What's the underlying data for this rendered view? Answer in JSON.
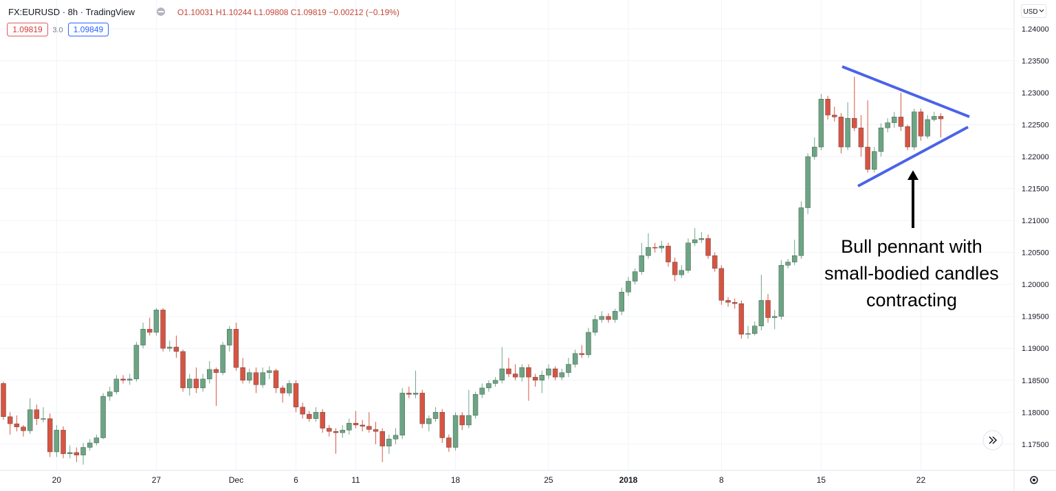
{
  "chart_data": {
    "type": "candlestick",
    "header": {
      "symbol": "FX:EURUSD · 8h · TradingView",
      "ohlc": "O1.10031 H1.10244 L1.09808 C1.09819 −0.00212 (−0.19%)",
      "bid": "1.09819",
      "spread": "3.0",
      "ask": "1.09849",
      "currency": "USD"
    },
    "annotation": [
      "Bull pennant with",
      "small-bodied candles",
      "contracting"
    ],
    "up_color": "#6ba583",
    "down_color": "#d75442",
    "grid": true,
    "ylim": [
      1.1709,
      1.2445
    ],
    "yticks": [
      {
        "value": 1.175,
        "label": "1.17500"
      },
      {
        "value": 1.18,
        "label": "1.18000"
      },
      {
        "value": 1.185,
        "label": "1.18500"
      },
      {
        "value": 1.19,
        "label": "1.19000"
      },
      {
        "value": 1.195,
        "label": "1.19500"
      },
      {
        "value": 1.2,
        "label": "1.20000"
      },
      {
        "value": 1.205,
        "label": "1.20500"
      },
      {
        "value": 1.21,
        "label": "1.21000"
      },
      {
        "value": 1.215,
        "label": "1.21500"
      },
      {
        "value": 1.22,
        "label": "1.22000"
      },
      {
        "value": 1.225,
        "label": "1.22500"
      },
      {
        "value": 1.23,
        "label": "1.23000"
      },
      {
        "value": 1.235,
        "label": "1.23500"
      },
      {
        "value": 1.24,
        "label": "1.24000"
      }
    ],
    "categories": [
      null,
      null,
      null,
      null,
      null,
      null,
      null,
      null,
      "20",
      null,
      null,
      null,
      null,
      null,
      null,
      null,
      null,
      null,
      null,
      null,
      null,
      null,
      null,
      "27",
      null,
      null,
      null,
      null,
      null,
      null,
      null,
      null,
      null,
      null,
      null,
      "Dec",
      null,
      null,
      null,
      null,
      null,
      null,
      null,
      null,
      "6",
      null,
      null,
      null,
      null,
      null,
      null,
      null,
      null,
      "11",
      null,
      null,
      null,
      null,
      null,
      null,
      null,
      null,
      null,
      null,
      null,
      null,
      null,
      null,
      "18",
      null,
      null,
      null,
      null,
      null,
      null,
      null,
      null,
      null,
      null,
      null,
      null,
      null,
      "25",
      null,
      null,
      null,
      null,
      null,
      null,
      null,
      null,
      null,
      null,
      null,
      "2018",
      null,
      null,
      null,
      null,
      null,
      null,
      null,
      null,
      null,
      null,
      null,
      null,
      null,
      "8",
      null,
      null,
      null,
      null,
      null,
      null,
      null,
      null,
      null,
      null,
      null,
      null,
      null,
      null,
      "15",
      null,
      null,
      null,
      null,
      null,
      null,
      null,
      null,
      null,
      null,
      null,
      null,
      null,
      null,
      "22",
      null,
      null,
      null
    ],
    "candles": [
      [
        1.1845,
        1.1848,
        1.1788,
        1.1793
      ],
      [
        1.1793,
        1.18,
        1.1765,
        1.1782
      ],
      [
        1.1782,
        1.1795,
        1.177,
        1.1777
      ],
      [
        1.1777,
        1.178,
        1.1762,
        1.1771
      ],
      [
        1.1771,
        1.1822,
        1.1766,
        1.1804
      ],
      [
        1.1804,
        1.1812,
        1.178,
        1.179
      ],
      [
        1.179,
        1.1808,
        1.1784,
        1.179
      ],
      [
        1.179,
        1.1798,
        1.173,
        1.1738
      ],
      [
        1.1738,
        1.178,
        1.173,
        1.1772
      ],
      [
        1.1772,
        1.1778,
        1.1728,
        1.1735
      ],
      [
        1.1735,
        1.1748,
        1.1728,
        1.1737
      ],
      [
        1.1737,
        1.1745,
        1.1722,
        1.1733
      ],
      [
        1.1733,
        1.1752,
        1.1718,
        1.1745
      ],
      [
        1.1745,
        1.1758,
        1.174,
        1.1752
      ],
      [
        1.1752,
        1.1765,
        1.1748,
        1.176
      ],
      [
        1.176,
        1.183,
        1.1758,
        1.1825
      ],
      [
        1.1825,
        1.184,
        1.1818,
        1.1832
      ],
      [
        1.1832,
        1.1858,
        1.1828,
        1.1852
      ],
      [
        1.1852,
        1.1858,
        1.1845,
        1.185
      ],
      [
        1.185,
        1.186,
        1.1843,
        1.1852
      ],
      [
        1.1852,
        1.191,
        1.1848,
        1.1905
      ],
      [
        1.1905,
        1.194,
        1.19,
        1.193
      ],
      [
        1.193,
        1.1948,
        1.192,
        1.1925
      ],
      [
        1.1925,
        1.1963,
        1.192,
        1.196
      ],
      [
        1.196,
        1.1963,
        1.1895,
        1.19
      ],
      [
        1.19,
        1.1912,
        1.1895,
        1.1902
      ],
      [
        1.1902,
        1.192,
        1.1885,
        1.1895
      ],
      [
        1.1895,
        1.1898,
        1.1832,
        1.1838
      ],
      [
        1.1838,
        1.186,
        1.1826,
        1.1852
      ],
      [
        1.1852,
        1.187,
        1.183,
        1.1838
      ],
      [
        1.1838,
        1.186,
        1.1832,
        1.1852
      ],
      [
        1.1852,
        1.188,
        1.1845,
        1.1867
      ],
      [
        1.1867,
        1.187,
        1.181,
        1.1862
      ],
      [
        1.1862,
        1.191,
        1.1858,
        1.1905
      ],
      [
        1.1905,
        1.1935,
        1.1895,
        1.193
      ],
      [
        1.193,
        1.194,
        1.1865,
        1.187
      ],
      [
        1.187,
        1.1885,
        1.1845,
        1.185
      ],
      [
        1.185,
        1.1868,
        1.1845,
        1.1862
      ],
      [
        1.1862,
        1.187,
        1.183,
        1.1843
      ],
      [
        1.1843,
        1.187,
        1.1838,
        1.1862
      ],
      [
        1.1862,
        1.1872,
        1.1852,
        1.1865
      ],
      [
        1.1865,
        1.1868,
        1.183,
        1.1838
      ],
      [
        1.1838,
        1.1842,
        1.1815,
        1.183
      ],
      [
        1.183,
        1.185,
        1.1825,
        1.1845
      ],
      [
        1.1845,
        1.185,
        1.18,
        1.1808
      ],
      [
        1.1808,
        1.1815,
        1.179,
        1.1797
      ],
      [
        1.1797,
        1.1802,
        1.1785,
        1.179
      ],
      [
        1.179,
        1.1808,
        1.1785,
        1.18
      ],
      [
        1.18,
        1.1805,
        1.1768,
        1.1775
      ],
      [
        1.1775,
        1.178,
        1.1762,
        1.177
      ],
      [
        1.177,
        1.1775,
        1.1735,
        1.1768
      ],
      [
        1.1768,
        1.178,
        1.176,
        1.1772
      ],
      [
        1.1772,
        1.179,
        1.1765,
        1.1783
      ],
      [
        1.1783,
        1.1802,
        1.1775,
        1.178
      ],
      [
        1.178,
        1.1788,
        1.177,
        1.1778
      ],
      [
        1.1778,
        1.18,
        1.1768,
        1.1773
      ],
      [
        1.1773,
        1.1785,
        1.175,
        1.177
      ],
      [
        1.177,
        1.1775,
        1.1722,
        1.1747
      ],
      [
        1.1747,
        1.1765,
        1.1735,
        1.1758
      ],
      [
        1.1758,
        1.1775,
        1.175,
        1.1764
      ],
      [
        1.1764,
        1.1838,
        1.1758,
        1.183
      ],
      [
        1.183,
        1.184,
        1.1822,
        1.1828
      ],
      [
        1.1828,
        1.1865,
        1.1822,
        1.183
      ],
      [
        1.183,
        1.1835,
        1.1775,
        1.1782
      ],
      [
        1.1782,
        1.1795,
        1.177,
        1.179
      ],
      [
        1.179,
        1.1808,
        1.1785,
        1.18
      ],
      [
        1.18,
        1.1805,
        1.1752,
        1.176
      ],
      [
        1.176,
        1.1765,
        1.1738,
        1.1745
      ],
      [
        1.1745,
        1.18,
        1.174,
        1.1795
      ],
      [
        1.1795,
        1.18,
        1.1772,
        1.178
      ],
      [
        1.178,
        1.1835,
        1.1775,
        1.1795
      ],
      [
        1.1795,
        1.1832,
        1.179,
        1.1828
      ],
      [
        1.1828,
        1.1845,
        1.1822,
        1.1838
      ],
      [
        1.1838,
        1.185,
        1.1832,
        1.1845
      ],
      [
        1.1845,
        1.1855,
        1.184,
        1.185
      ],
      [
        1.185,
        1.1902,
        1.1845,
        1.1868
      ],
      [
        1.1868,
        1.1885,
        1.1855,
        1.186
      ],
      [
        1.186,
        1.1875,
        1.185,
        1.1855
      ],
      [
        1.1855,
        1.1875,
        1.1848,
        1.187
      ],
      [
        1.187,
        1.1875,
        1.1818,
        1.1855
      ],
      [
        1.1855,
        1.186,
        1.184,
        1.185
      ],
      [
        1.185,
        1.1865,
        1.183,
        1.1858
      ],
      [
        1.1858,
        1.1875,
        1.1852,
        1.1868
      ],
      [
        1.1868,
        1.1872,
        1.185,
        1.1855
      ],
      [
        1.1855,
        1.1868,
        1.185,
        1.1862
      ],
      [
        1.1862,
        1.1885,
        1.1855,
        1.1875
      ],
      [
        1.1875,
        1.1898,
        1.187,
        1.1892
      ],
      [
        1.1892,
        1.1905,
        1.1885,
        1.189
      ],
      [
        1.189,
        1.1932,
        1.1885,
        1.1925
      ],
      [
        1.1925,
        1.1952,
        1.192,
        1.1945
      ],
      [
        1.1945,
        1.1958,
        1.194,
        1.195
      ],
      [
        1.195,
        1.1955,
        1.194,
        1.1945
      ],
      [
        1.1945,
        1.1962,
        1.194,
        1.1958
      ],
      [
        1.1958,
        1.1995,
        1.1952,
        1.1988
      ],
      [
        1.1988,
        1.2012,
        1.1982,
        1.2005
      ],
      [
        1.2005,
        1.2025,
        1.2,
        1.202
      ],
      [
        1.202,
        1.2065,
        1.2015,
        1.2045
      ],
      [
        1.2045,
        1.208,
        1.204,
        1.2058
      ],
      [
        1.2058,
        1.2065,
        1.205,
        1.2057
      ],
      [
        1.2057,
        1.2068,
        1.205,
        1.206
      ],
      [
        1.206,
        1.2065,
        1.2028,
        1.2035
      ],
      [
        1.2035,
        1.2042,
        1.2005,
        1.2015
      ],
      [
        1.2015,
        1.203,
        1.201,
        1.2022
      ],
      [
        1.2022,
        1.2072,
        1.2018,
        1.2065
      ],
      [
        1.2065,
        1.2088,
        1.206,
        1.207
      ],
      [
        1.207,
        1.2082,
        1.2065,
        1.2072
      ],
      [
        1.2072,
        1.2078,
        1.204,
        1.2045
      ],
      [
        1.2045,
        1.205,
        1.202,
        1.2025
      ],
      [
        1.2025,
        1.203,
        1.1968,
        1.1975
      ],
      [
        1.1975,
        1.198,
        1.1965,
        1.1972
      ],
      [
        1.1972,
        1.1978,
        1.1962,
        1.197
      ],
      [
        1.197,
        1.1975,
        1.1915,
        1.1922
      ],
      [
        1.1922,
        1.1935,
        1.1915,
        1.1923
      ],
      [
        1.1923,
        1.1942,
        1.192,
        1.1935
      ],
      [
        1.1935,
        1.2015,
        1.1928,
        1.1975
      ],
      [
        1.1975,
        1.1985,
        1.194,
        1.1948
      ],
      [
        1.1948,
        1.196,
        1.193,
        1.195
      ],
      [
        1.195,
        1.2038,
        1.1945,
        1.203
      ],
      [
        1.203,
        1.204,
        1.2025,
        1.2035
      ],
      [
        1.2035,
        1.207,
        1.203,
        1.2045
      ],
      [
        1.2045,
        1.213,
        1.204,
        1.212
      ],
      [
        1.212,
        1.2205,
        1.211,
        1.22
      ],
      [
        1.22,
        1.223,
        1.2195,
        1.2215
      ],
      [
        1.2215,
        1.2298,
        1.221,
        1.229
      ],
      [
        1.229,
        1.2295,
        1.2258,
        1.2265
      ],
      [
        1.2265,
        1.2278,
        1.2255,
        1.2262
      ],
      [
        1.2262,
        1.2268,
        1.2205,
        1.2215
      ],
      [
        1.2215,
        1.2285,
        1.221,
        1.226
      ],
      [
        1.226,
        1.2325,
        1.224,
        1.2245
      ],
      [
        1.2245,
        1.2265,
        1.22,
        1.2215
      ],
      [
        1.2215,
        1.2288,
        1.2175,
        1.218
      ],
      [
        1.218,
        1.2215,
        1.2175,
        1.2208
      ],
      [
        1.2208,
        1.2252,
        1.22,
        1.2245
      ],
      [
        1.2245,
        1.226,
        1.2238,
        1.2253
      ],
      [
        1.2253,
        1.227,
        1.2245,
        1.2262
      ],
      [
        1.2262,
        1.23,
        1.224,
        1.2247
      ],
      [
        1.2247,
        1.225,
        1.221,
        1.2215
      ],
      [
        1.2215,
        1.2275,
        1.221,
        1.227
      ],
      [
        1.227,
        1.2275,
        1.2225,
        1.2232
      ],
      [
        1.2232,
        1.2265,
        1.2228,
        1.2258
      ],
      [
        1.2258,
        1.227,
        1.2255,
        1.2263
      ],
      [
        1.2263,
        1.2268,
        1.223,
        1.2259
      ]
    ]
  }
}
